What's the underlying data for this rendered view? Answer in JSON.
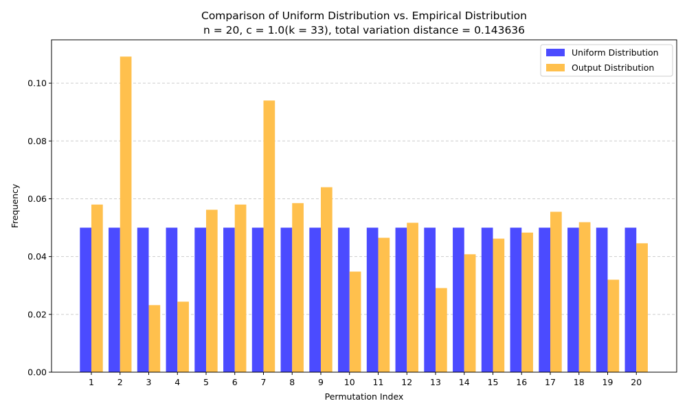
{
  "chart_data": {
    "type": "bar",
    "title": "Comparison of Uniform Distribution vs. Empirical Distribution",
    "subtitle": "n = 20, c = 1.0(k = 33), total variation distance = 0.143636",
    "xlabel": "Permutation Index",
    "ylabel": "Frequency",
    "ylim": [
      0,
      0.115
    ],
    "yticks": [
      "0.00",
      "0.02",
      "0.04",
      "0.06",
      "0.08",
      "0.10"
    ],
    "grid": "horizontal dashed",
    "legend_position": "top-right",
    "categories": [
      "1",
      "2",
      "3",
      "4",
      "5",
      "6",
      "7",
      "8",
      "9",
      "10",
      "11",
      "12",
      "13",
      "14",
      "15",
      "16",
      "17",
      "18",
      "19",
      "20"
    ],
    "series": [
      {
        "name": "Uniform Distribution",
        "color": "#4b4bff",
        "values": [
          0.05,
          0.05,
          0.05,
          0.05,
          0.05,
          0.05,
          0.05,
          0.05,
          0.05,
          0.05,
          0.05,
          0.05,
          0.05,
          0.05,
          0.05,
          0.05,
          0.05,
          0.05,
          0.05,
          0.05
        ]
      },
      {
        "name": "Output Distribution",
        "color": "#ffc04d",
        "values": [
          0.058,
          0.1092,
          0.0232,
          0.0244,
          0.0562,
          0.058,
          0.094,
          0.0585,
          0.064,
          0.0348,
          0.0465,
          0.0517,
          0.0291,
          0.0408,
          0.0462,
          0.0483,
          0.0555,
          0.0519,
          0.032,
          0.0446
        ]
      }
    ]
  }
}
